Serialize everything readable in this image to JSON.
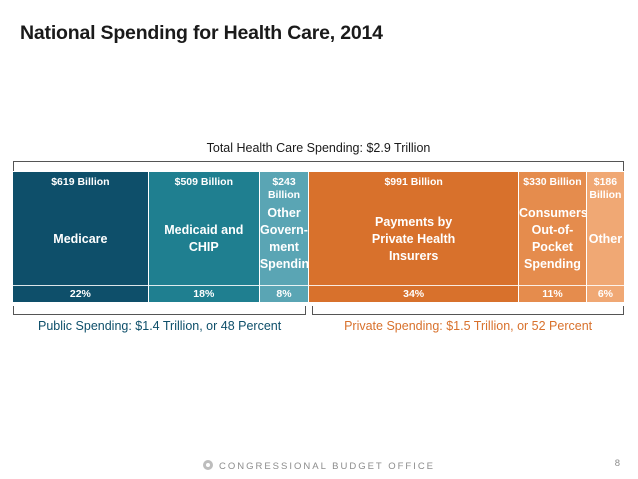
{
  "chart_data": {
    "type": "bar",
    "title": "National Spending for Health Care, 2014",
    "total_label": "Total Health Care Spending: $2.9 Trillion",
    "segments": [
      {
        "amount": "$619 Billion",
        "name": "Medicare",
        "percent_label": "22%",
        "percent": 22,
        "color": "#0e4f6a"
      },
      {
        "amount": "$509 Billion",
        "name": "Medicaid and\nCHIP",
        "percent_label": "18%",
        "percent": 18,
        "color": "#1f7f90"
      },
      {
        "amount": "$243\nBillion",
        "name": "Other\nGovern-\nment\nSpending",
        "percent_label": "8%",
        "percent": 8,
        "color": "#5aa5b4"
      },
      {
        "amount": "$991 Billion",
        "name": "Payments by\nPrivate Health\nInsurers",
        "percent_label": "34%",
        "percent": 34,
        "color": "#d8712c"
      },
      {
        "amount": "$330 Billion",
        "name": "Consumers'\nOut-of-\nPocket\nSpending",
        "percent_label": "11%",
        "percent": 11,
        "color": "#e58c4d"
      },
      {
        "amount": "$186\nBillion",
        "name": "Other",
        "percent_label": "6%",
        "percent": 6,
        "color": "#f0a874"
      }
    ],
    "groups": [
      {
        "label": "Public Spending: $1.4 Trillion, or 48 Percent",
        "color": "#0e4f6a",
        "segments": [
          0,
          1,
          2
        ]
      },
      {
        "label": "Private Spending: $1.5 Trillion, or 52 Percent",
        "color": "#d8712c",
        "segments": [
          3,
          4,
          5
        ]
      }
    ]
  },
  "footer": {
    "organization": "CONGRESSIONAL BUDGET OFFICE",
    "page_number": "8"
  }
}
